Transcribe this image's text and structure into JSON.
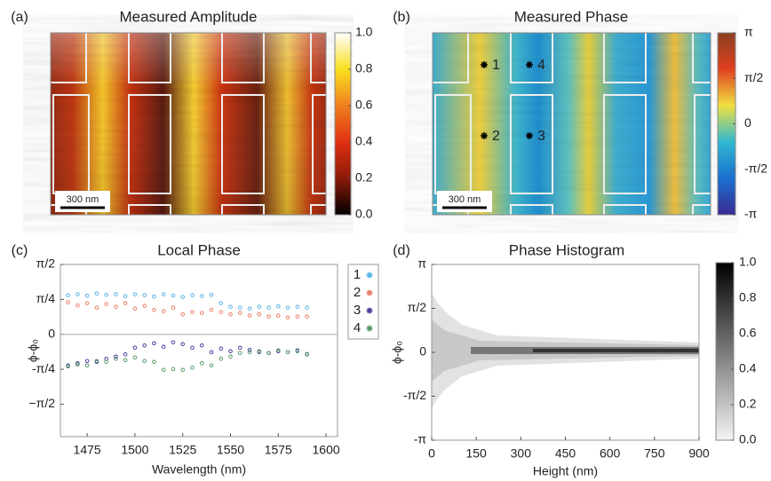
{
  "chart_data": [
    {
      "type": "heatmap",
      "panel": "(a)",
      "title": "Measured Amplitude",
      "scale_bar": "300 nm",
      "colormap": [
        "#000000",
        "#8b1a0a",
        "#e03010",
        "#f08020",
        "#f8e020",
        "#ffffff"
      ],
      "clim": [
        0,
        1
      ],
      "cticks": [
        {
          "value": 0,
          "label": "0.0"
        },
        0.2,
        0.4,
        0.6,
        0.8,
        {
          "value": 1,
          "label": "1.0"
        }
      ]
    },
    {
      "type": "heatmap",
      "panel": "(b)",
      "title": "Measured Phase",
      "scale_bar": "300 nm",
      "colormap": [
        "#3a2a90",
        "#1a70d0",
        "#30b8d0",
        "#f0e040",
        "#e04020",
        "#8a4020"
      ],
      "clim": [
        -3.1416,
        3.1416
      ],
      "cticks": [
        {
          "value": -3.1416,
          "label": "-π"
        },
        {
          "value": -1.5708,
          "label": "-π/2"
        },
        0,
        {
          "value": 1.5708,
          "label": "π/2"
        },
        {
          "value": 3.1416,
          "label": "π"
        }
      ],
      "markers": [
        "1",
        "4",
        "2",
        "3"
      ]
    },
    {
      "type": "scatter",
      "panel": "(c)",
      "title": "Local Phase",
      "xlabel": "Wavelength  (nm)",
      "ylabel": "ϕ-ϕ₀",
      "xlim": [
        1461,
        1606
      ],
      "xticks": [
        1475,
        1500,
        1525,
        1550,
        1575,
        1600
      ],
      "ylim": [
        -2.3,
        1.5708
      ],
      "yticks": [
        {
          "value": -1.5708,
          "label": "−π/2"
        },
        {
          "value": -0.7854,
          "label": "-π/4"
        },
        0,
        {
          "value": 0.7854,
          "label": "π/4"
        },
        {
          "value": 1.5708,
          "label": "π/2"
        }
      ],
      "x": [
        1465,
        1470,
        1475,
        1480,
        1485,
        1490,
        1495,
        1500,
        1505,
        1510,
        1515,
        1520,
        1525,
        1530,
        1535,
        1540,
        1545,
        1550,
        1555,
        1560,
        1565,
        1570,
        1575,
        1580,
        1585,
        1590
      ],
      "series": [
        {
          "name": "1",
          "color": "#5ab4e6",
          "values": [
            0.88,
            0.9,
            0.87,
            0.92,
            0.89,
            0.9,
            0.86,
            0.9,
            0.88,
            0.85,
            0.9,
            0.87,
            0.84,
            0.88,
            0.86,
            0.89,
            0.7,
            0.62,
            0.6,
            0.58,
            0.62,
            0.6,
            0.63,
            0.6,
            0.62,
            0.6
          ]
        },
        {
          "name": "2",
          "color": "#e8806a",
          "values": [
            0.72,
            0.65,
            0.7,
            0.6,
            0.68,
            0.62,
            0.7,
            0.58,
            0.64,
            0.55,
            0.52,
            0.6,
            0.45,
            0.5,
            0.48,
            0.55,
            0.5,
            0.45,
            0.48,
            0.42,
            0.45,
            0.4,
            0.42,
            0.38,
            0.4,
            0.4
          ]
        },
        {
          "name": "3",
          "color": "#4a3fa0",
          "values": [
            -0.7,
            -0.65,
            -0.6,
            -0.62,
            -0.55,
            -0.5,
            -0.45,
            -0.3,
            -0.25,
            -0.2,
            -0.28,
            -0.18,
            -0.22,
            -0.3,
            -0.25,
            -0.4,
            -0.32,
            -0.38,
            -0.3,
            -0.35,
            -0.4,
            -0.42,
            -0.38,
            -0.4,
            -0.36,
            -0.45
          ]
        },
        {
          "name": "4",
          "color": "#5a9a6a",
          "values": [
            -0.72,
            -0.68,
            -0.7,
            -0.6,
            -0.62,
            -0.55,
            -0.58,
            -0.52,
            -0.6,
            -0.62,
            -0.8,
            -0.78,
            -0.8,
            -0.75,
            -0.65,
            -0.7,
            -0.55,
            -0.5,
            -0.42,
            -0.4,
            -0.38,
            -0.42,
            -0.36,
            -0.4,
            -0.38,
            -0.44
          ]
        }
      ]
    },
    {
      "type": "histogram2d",
      "panel": "(d)",
      "title": "Phase Histogram",
      "xlabel": "Height  (nm)",
      "ylabel": "ϕ-ϕ₀",
      "xlim": [
        0,
        900
      ],
      "xticks": [
        0,
        150,
        300,
        450,
        600,
        750,
        900
      ],
      "ylim": [
        -3.1416,
        3.1416
      ],
      "yticks": [
        {
          "value": -3.1416,
          "label": "-π"
        },
        {
          "value": -1.5708,
          "label": "-π/2"
        },
        0,
        {
          "value": 1.5708,
          "label": "π/2"
        },
        {
          "value": 3.1416,
          "label": "π"
        }
      ],
      "colormap": [
        "#f4f4f4",
        "#000000"
      ],
      "clim": [
        0,
        1
      ],
      "cticks": [
        {
          "value": 0,
          "label": "0.0"
        },
        0.2,
        0.4,
        0.6,
        0.8,
        {
          "value": 1,
          "label": "1.0"
        }
      ]
    }
  ]
}
